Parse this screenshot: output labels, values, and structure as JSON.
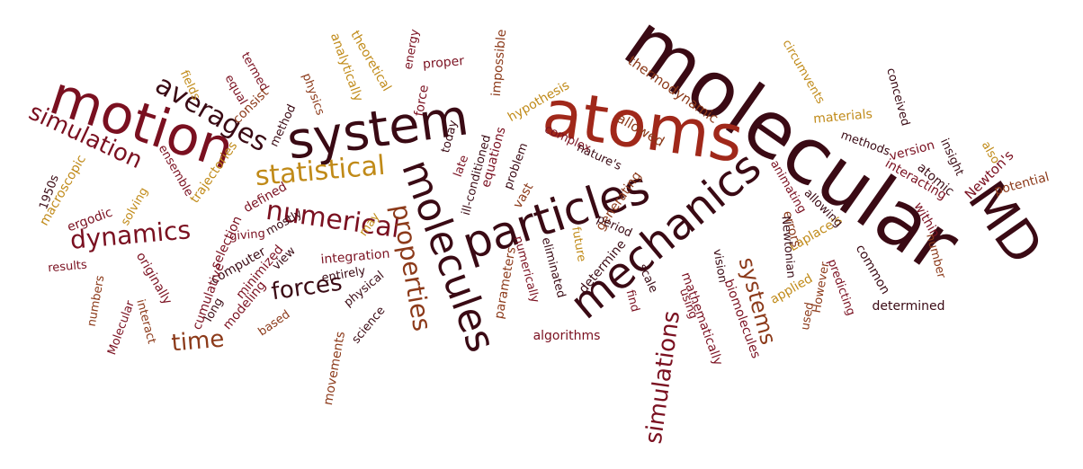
{
  "palette": {
    "dark": "#3a0a14",
    "maroon": "#7a1020",
    "rust": "#a0281a",
    "brown": "#8c3a1a",
    "gold": "#c08a18",
    "plum": "#6a1434"
  },
  "words": [
    {
      "text": "molecular",
      "color": "dark"
    },
    {
      "text": "atoms",
      "color": "rust"
    },
    {
      "text": "system",
      "color": "dark"
    },
    {
      "text": "motion",
      "color": "maroon"
    },
    {
      "text": "particles",
      "color": "dark"
    },
    {
      "text": "molecules",
      "color": "dark"
    },
    {
      "text": "mechanics",
      "color": "dark"
    },
    {
      "text": "MD",
      "color": "dark"
    },
    {
      "text": "statistical",
      "color": "gold"
    },
    {
      "text": "numerical",
      "color": "maroon"
    },
    {
      "text": "dynamics",
      "color": "maroon"
    },
    {
      "text": "averages",
      "color": "dark"
    },
    {
      "text": "simulation",
      "color": "maroon"
    },
    {
      "text": "properties",
      "color": "brown"
    },
    {
      "text": "simulations",
      "color": "maroon"
    },
    {
      "text": "systems",
      "color": "brown"
    },
    {
      "text": "forces",
      "color": "dark"
    },
    {
      "text": "time",
      "color": "brown"
    },
    {
      "text": "thermodynamic",
      "color": "brown"
    },
    {
      "text": "allowed",
      "color": "brown"
    },
    {
      "text": "materials",
      "color": "gold"
    },
    {
      "text": "circumvents",
      "color": "gold"
    },
    {
      "text": "conceived",
      "color": "dark"
    },
    {
      "text": "methods",
      "color": "dark"
    },
    {
      "text": "version",
      "color": "maroon"
    },
    {
      "text": "interacting",
      "color": "maroon"
    },
    {
      "text": "atomic",
      "color": "dark"
    },
    {
      "text": "insight",
      "color": "dark"
    },
    {
      "text": "Newton's",
      "color": "maroon"
    },
    {
      "text": "also",
      "color": "gold"
    },
    {
      "text": "potential",
      "color": "brown"
    },
    {
      "text": "within",
      "color": "maroon"
    },
    {
      "text": "number",
      "color": "brown"
    },
    {
      "text": "determined",
      "color": "dark"
    },
    {
      "text": "common",
      "color": "dark"
    },
    {
      "text": "predicting",
      "color": "maroon"
    },
    {
      "text": "However",
      "color": "brown"
    },
    {
      "text": "used",
      "color": "brown"
    },
    {
      "text": "applied",
      "color": "gold"
    },
    {
      "text": "Laplace's",
      "color": "gold"
    },
    {
      "text": "errors",
      "color": "brown"
    },
    {
      "text": "allowing",
      "color": "dark"
    },
    {
      "text": "animating",
      "color": "maroon"
    },
    {
      "text": "Newtonian",
      "color": "dark"
    },
    {
      "text": "vision",
      "color": "dark"
    },
    {
      "text": "biomolecules",
      "color": "maroon"
    },
    {
      "text": "mathematically",
      "color": "maroon"
    },
    {
      "text": "using",
      "color": "maroon"
    },
    {
      "text": "find",
      "color": "maroon"
    },
    {
      "text": "scale",
      "color": "dark"
    },
    {
      "text": "generating",
      "color": "brown"
    },
    {
      "text": "period",
      "color": "dark"
    },
    {
      "text": "determine",
      "color": "dark"
    },
    {
      "text": "future",
      "color": "gold"
    },
    {
      "text": "nature's",
      "color": "dark"
    },
    {
      "text": "complex",
      "color": "maroon"
    },
    {
      "text": "eliminated",
      "color": "dark"
    },
    {
      "text": "numerically",
      "color": "maroon"
    },
    {
      "text": "parameters",
      "color": "brown"
    },
    {
      "text": "algorithms",
      "color": "maroon"
    },
    {
      "text": "vast",
      "color": "brown"
    },
    {
      "text": "problem",
      "color": "dark"
    },
    {
      "text": "hypothesis",
      "color": "gold"
    },
    {
      "text": "impossible",
      "color": "brown"
    },
    {
      "text": "ill-conditioned",
      "color": "dark"
    },
    {
      "text": "equations",
      "color": "maroon"
    },
    {
      "text": "late",
      "color": "maroon"
    },
    {
      "text": "today",
      "color": "dark"
    },
    {
      "text": "proper",
      "color": "maroon"
    },
    {
      "text": "energy",
      "color": "maroon"
    },
    {
      "text": "force",
      "color": "maroon"
    },
    {
      "text": "theoretical",
      "color": "gold"
    },
    {
      "text": "analytically",
      "color": "gold"
    },
    {
      "text": "physics",
      "color": "brown"
    },
    {
      "text": "method",
      "color": "dark"
    },
    {
      "text": "termed",
      "color": "maroon"
    },
    {
      "text": "equal",
      "color": "maroon"
    },
    {
      "text": "consist",
      "color": "brown"
    },
    {
      "text": "fields",
      "color": "gold"
    },
    {
      "text": "ensemble",
      "color": "maroon"
    },
    {
      "text": "trajectories",
      "color": "gold"
    },
    {
      "text": "defined",
      "color": "maroon"
    },
    {
      "text": "mostly",
      "color": "dark"
    },
    {
      "text": "may",
      "color": "gold"
    },
    {
      "text": "selection",
      "color": "maroon"
    },
    {
      "text": "giving",
      "color": "maroon"
    },
    {
      "text": "computer",
      "color": "dark"
    },
    {
      "text": "minimized",
      "color": "maroon"
    },
    {
      "text": "view",
      "color": "dark"
    },
    {
      "text": "integration",
      "color": "maroon"
    },
    {
      "text": "entirely",
      "color": "dark"
    },
    {
      "text": "physical",
      "color": "dark"
    },
    {
      "text": "science",
      "color": "dark"
    },
    {
      "text": "movements",
      "color": "brown"
    },
    {
      "text": "based",
      "color": "brown"
    },
    {
      "text": "modeling",
      "color": "maroon"
    },
    {
      "text": "long",
      "color": "dark"
    },
    {
      "text": "cumulative",
      "color": "maroon"
    },
    {
      "text": "originally",
      "color": "maroon"
    },
    {
      "text": "interact",
      "color": "brown"
    },
    {
      "text": "Molecular",
      "color": "maroon"
    },
    {
      "text": "numbers",
      "color": "brown"
    },
    {
      "text": "results",
      "color": "maroon"
    },
    {
      "text": "solving",
      "color": "gold"
    },
    {
      "text": "ergodic",
      "color": "maroon"
    },
    {
      "text": "macroscopic",
      "color": "gold"
    },
    {
      "text": "1950s",
      "color": "dark"
    }
  ]
}
